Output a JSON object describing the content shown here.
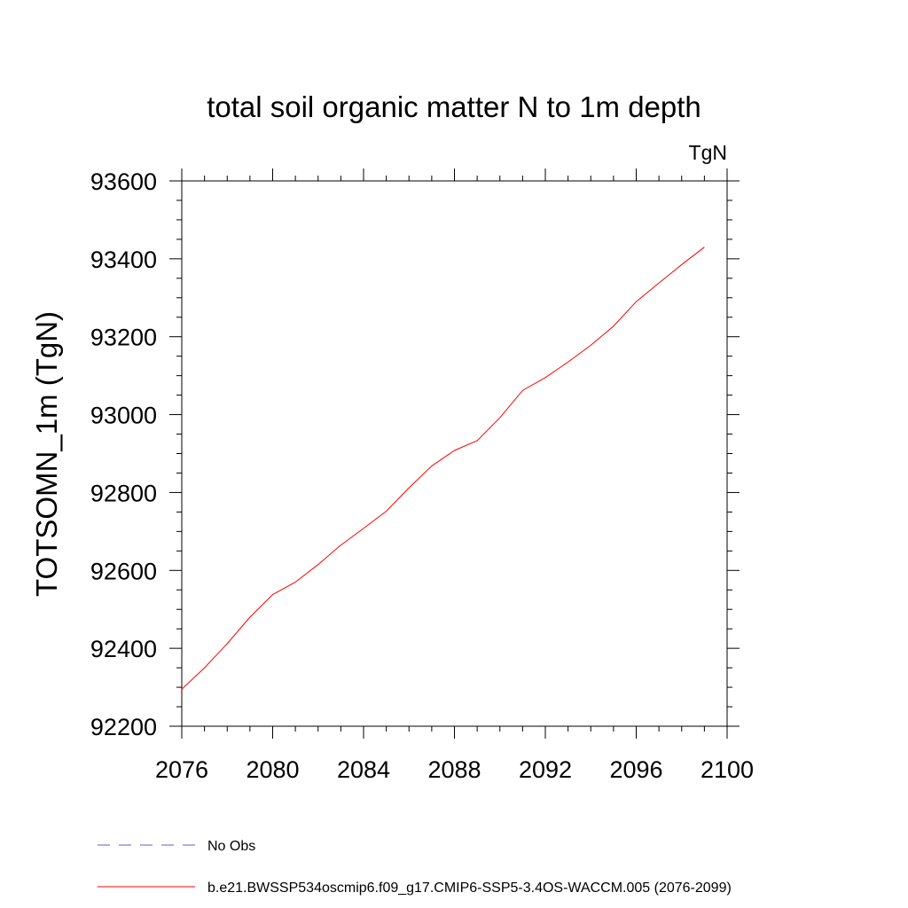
{
  "chart_data": {
    "type": "line",
    "title": "total soil organic matter N to 1m depth",
    "units_label": "TgN",
    "ylabel": "TOTSOMN_1m  (TgN)",
    "xlabel": "",
    "xlim": [
      2076,
      2100
    ],
    "ylim": [
      92200,
      93600
    ],
    "x_ticks": [
      2076,
      2080,
      2084,
      2088,
      2092,
      2096,
      2100
    ],
    "y_ticks": [
      92200,
      92400,
      92600,
      92800,
      93000,
      93200,
      93400,
      93600
    ],
    "grid": false,
    "legend_position": "bottom-left",
    "series": [
      {
        "name": "b.e21.BWSSP534oscmip6.f09_g17.CMIP6-SSP5-3.4OS-WACCM.005 (2076-2099)",
        "color": "#ff0000",
        "style": "solid",
        "x": [
          2076,
          2077,
          2078,
          2079,
          2080,
          2081,
          2082,
          2083,
          2084,
          2085,
          2086,
          2087,
          2088,
          2089,
          2090,
          2091,
          2092,
          2093,
          2094,
          2095,
          2096,
          2097,
          2098,
          2099
        ],
        "values": [
          92295,
          92350,
          92412,
          92480,
          92538,
          92570,
          92615,
          92665,
          92708,
          92752,
          92812,
          92868,
          92908,
          92933,
          92992,
          93062,
          93095,
          93135,
          93178,
          93227,
          93290,
          93338,
          93385,
          93430
        ]
      },
      {
        "name": "No Obs",
        "color": "#6a5acd",
        "style": "dashed",
        "x": [],
        "values": []
      }
    ]
  }
}
